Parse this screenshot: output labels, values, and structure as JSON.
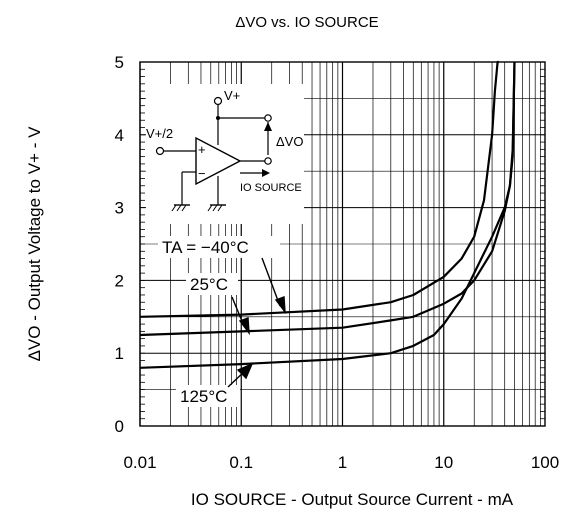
{
  "chart_data": {
    "type": "line",
    "title": "ΔVO vs. IO SOURCE",
    "xlabel": "IO SOURCE - Output Source Current - mA",
    "ylabel": "ΔVO - Output Voltage to V+ - V",
    "x_scale": "log",
    "xlim": [
      0.01,
      100
    ],
    "ylim": [
      0,
      5
    ],
    "grid": true,
    "x_ticks": [
      "0.01",
      "0.1",
      "1",
      "10",
      "100"
    ],
    "y_ticks": [
      "0",
      "1",
      "2",
      "3",
      "4",
      "5"
    ],
    "series": [
      {
        "name": "TA = −40°C",
        "x": [
          0.01,
          0.1,
          1,
          3,
          5,
          10,
          15,
          20,
          25,
          30,
          32,
          34,
          35
        ],
        "y": [
          1.5,
          1.53,
          1.6,
          1.7,
          1.8,
          2.05,
          2.3,
          2.6,
          3.1,
          4.0,
          4.6,
          5.0,
          5.0
        ]
      },
      {
        "name": "25°C",
        "x": [
          0.01,
          0.1,
          1,
          3,
          5,
          10,
          15,
          20,
          30,
          40,
          45,
          48,
          50
        ],
        "y": [
          1.25,
          1.3,
          1.35,
          1.45,
          1.5,
          1.68,
          1.82,
          2.0,
          2.4,
          2.95,
          3.3,
          3.8,
          5.0
        ]
      },
      {
        "name": "125°C",
        "x": [
          0.01,
          0.1,
          1,
          3,
          5,
          8,
          10,
          15,
          20,
          30,
          40,
          45,
          48,
          50
        ],
        "y": [
          0.8,
          0.85,
          0.92,
          1.0,
          1.1,
          1.25,
          1.4,
          1.75,
          2.1,
          2.6,
          3.0,
          3.3,
          3.7,
          5.0
        ]
      }
    ],
    "curve_labels": [
      "TA = −40°C",
      "25°C",
      "125°C"
    ],
    "inset": {
      "v_plus": "V+",
      "v_half": "V+/2",
      "delta_vo": "ΔVO",
      "io_source": "IO SOURCE",
      "plus_sign": "+",
      "minus_sign": "−"
    }
  }
}
